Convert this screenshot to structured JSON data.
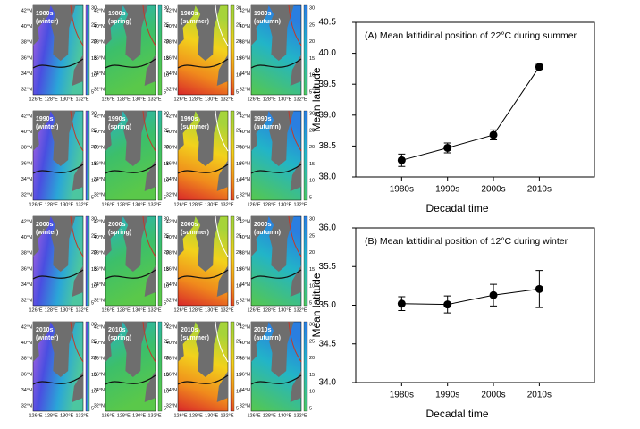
{
  "maps": {
    "panels": [
      [
        "1980s",
        "(winter)"
      ],
      [
        "1980s",
        "(spring)"
      ],
      [
        "1980s",
        "(summer)"
      ],
      [
        "1980s",
        "(autumn)"
      ],
      [
        "1990s",
        "(winter)"
      ],
      [
        "1990s",
        "(spring)"
      ],
      [
        "1990s",
        "(summer)"
      ],
      [
        "1990s",
        "(autumn)"
      ],
      [
        "2000s",
        "(winter)"
      ],
      [
        "2000s",
        "(spring)"
      ],
      [
        "2000s",
        "(summer)"
      ],
      [
        "2000s",
        "(autumn)"
      ],
      [
        "2010s",
        "(winter)"
      ],
      [
        "2010s",
        "(spring)"
      ],
      [
        "2010s",
        "(summer)"
      ],
      [
        "2010s",
        "(autumn)"
      ]
    ],
    "lat_labels": [
      "42°N",
      "40°N",
      "38°N",
      "36°N",
      "34°N",
      "32°N"
    ],
    "lon_labels": [
      "126°E",
      "128°E",
      "130°E",
      "132°E"
    ],
    "colorbar_ticks": [
      30,
      25,
      20,
      15,
      10,
      5
    ]
  },
  "chart_data": [
    {
      "type": "line",
      "title": "(A) Mean latitidinal position of 22°C during summer",
      "x_label": "Decadal time",
      "y_label": "Mean latitude",
      "categories": [
        "1980s",
        "1990s",
        "2000s",
        "2010s"
      ],
      "series": [
        {
          "color": "#000000",
          "values": [
            38.27,
            38.47,
            38.68,
            39.78
          ],
          "errors": [
            0.1,
            0.08,
            0.08,
            0.04
          ]
        }
      ],
      "ylim": [
        38.0,
        40.5
      ],
      "yticks": [
        {
          "value": 38,
          "label": "38.0"
        },
        {
          "value": 38.5,
          "label": "38.5"
        },
        {
          "value": 39,
          "label": "39.0"
        },
        {
          "value": 39.5,
          "label": "39.5"
        },
        {
          "value": 40,
          "label": "40.0"
        },
        {
          "value": 40.5,
          "label": "40.5"
        }
      ]
    },
    {
      "type": "line",
      "title": "(B) Mean latitidinal position of 12°C during winter",
      "x_label": "Decadal time",
      "y_label": "Mean latitude",
      "categories": [
        "1980s",
        "1990s",
        "2000s",
        "2010s"
      ],
      "series": [
        {
          "color": "#000000",
          "values": [
            35.02,
            35.01,
            35.13,
            35.21
          ],
          "errors": [
            0.09,
            0.11,
            0.14,
            0.24
          ]
        }
      ],
      "ylim": [
        34.0,
        36.0
      ],
      "yticks": [
        {
          "value": 34,
          "label": "34.0"
        },
        {
          "value": 34.5,
          "label": "34.5"
        },
        {
          "value": 35,
          "label": "35.0"
        },
        {
          "value": 35.5,
          "label": "35.5"
        },
        {
          "value": 36,
          "label": "36.0"
        }
      ]
    }
  ]
}
